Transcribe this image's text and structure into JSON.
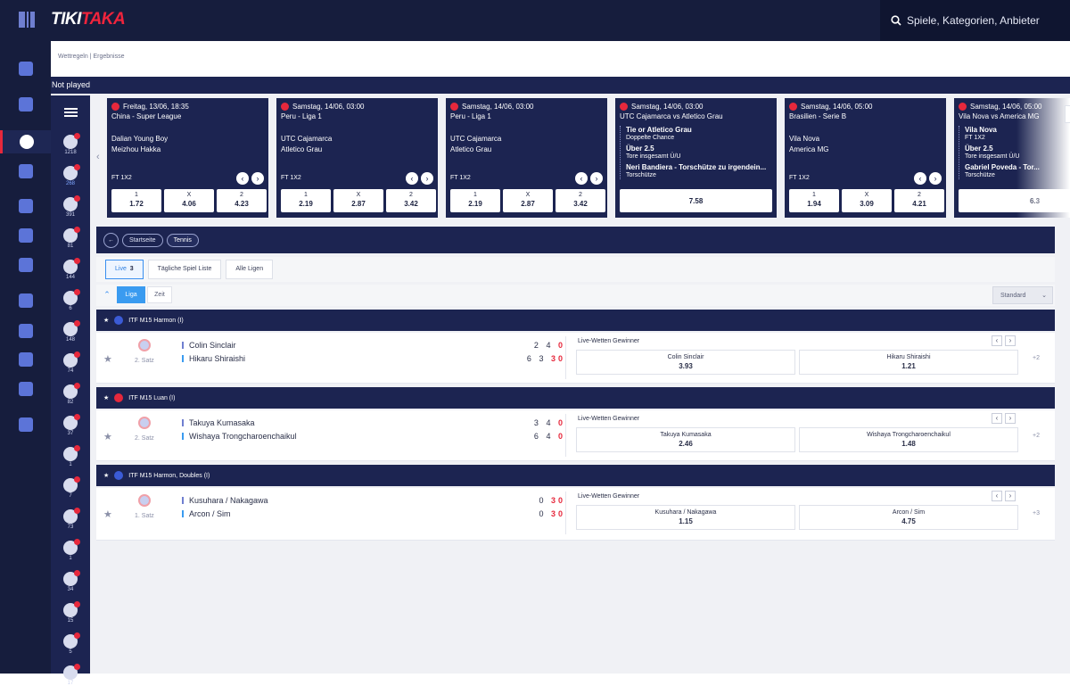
{
  "app": {
    "logo_left": "TIKI",
    "logo_right": "TAKA"
  },
  "search": {
    "placeholder": "Spiele, Kategorien, Anbieter"
  },
  "breadcrumb": {
    "item1": "Wettregeln",
    "sep": "|",
    "item2": "Ergebnisse"
  },
  "banner": {
    "label": "Not played"
  },
  "left_nav": [
    "gift-icon",
    "home-icon",
    "tennis-icon",
    "live-icon",
    "betslip-icon",
    "casino-icon",
    "seven-icon",
    "calendar-icon",
    "trophy-icon",
    "speed-icon",
    "basket-icon",
    "crown-icon"
  ],
  "sport_bar": [
    {
      "icon": "soccer-icon",
      "count": "1218"
    },
    {
      "icon": "tennis-icon",
      "count": "268"
    },
    {
      "icon": "table-tennis-icon",
      "count": "391"
    },
    {
      "icon": "basketball-icon",
      "count": "81"
    },
    {
      "icon": "hockey-icon",
      "count": "144"
    },
    {
      "icon": "rugby-icon",
      "count": "6"
    },
    {
      "icon": "volleyball-icon",
      "count": "148"
    },
    {
      "icon": "baseball-icon",
      "count": "74"
    },
    {
      "icon": "esports-icon",
      "count": "82"
    },
    {
      "icon": "cricket-icon",
      "count": "37"
    },
    {
      "icon": "darts-icon",
      "count": "1"
    },
    {
      "icon": "racing-icon",
      "count": "7"
    },
    {
      "icon": "chess-icon",
      "count": "73"
    },
    {
      "icon": "cycling-icon",
      "count": "1"
    },
    {
      "icon": "boxing-icon",
      "count": "34"
    },
    {
      "icon": "target-icon",
      "count": "15"
    },
    {
      "icon": "athletics-icon",
      "count": "5"
    },
    {
      "icon": "ski-icon",
      "count": "17"
    }
  ],
  "cards": [
    {
      "date": "Freitag, 13/06, 18:35",
      "league": "China - Super League",
      "home": "Dalian Young Boy",
      "away": "Meizhou Hakka",
      "market": "FT 1X2",
      "odds": [
        {
          "l": "1",
          "v": "1.72"
        },
        {
          "l": "X",
          "v": "4.06"
        },
        {
          "l": "2",
          "v": "4.23"
        }
      ]
    },
    {
      "date": "Samstag, 14/06, 03:00",
      "league": "Peru - Liga 1",
      "home": "UTC Cajamarca",
      "away": "Atletico Grau",
      "market": "FT 1X2",
      "odds": [
        {
          "l": "1",
          "v": "2.19"
        },
        {
          "l": "X",
          "v": "2.87"
        },
        {
          "l": "2",
          "v": "3.42"
        }
      ]
    },
    {
      "date": "Samstag, 14/06, 03:00",
      "league": "Peru - Liga 1",
      "home": "UTC Cajamarca",
      "away": "Atletico Grau",
      "market": "FT 1X2",
      "odds": [
        {
          "l": "1",
          "v": "2.19"
        },
        {
          "l": "X",
          "v": "2.87"
        },
        {
          "l": "2",
          "v": "3.42"
        }
      ]
    },
    {
      "date": "Samstag, 14/06, 03:00",
      "league": "UTC Cajamarca vs Atletico Grau",
      "bets": [
        {
          "b": "Tie or Atletico Grau",
          "s": "Doppelte Chance"
        },
        {
          "b": "Über 2.5",
          "s": "Tore insgesamt Ü/U"
        },
        {
          "b": "Neri Bandiera - Torschütze zu irgendein...",
          "s": "Torschütze"
        }
      ],
      "single": "7.58"
    },
    {
      "date": "Samstag, 14/06, 05:00",
      "league": "Brasilien - Serie B",
      "home": "Vila Nova",
      "away": "America MG",
      "market": "FT 1X2",
      "odds": [
        {
          "l": "1",
          "v": "1.94"
        },
        {
          "l": "X",
          "v": "3.09"
        },
        {
          "l": "2",
          "v": "4.21"
        }
      ]
    },
    {
      "date": "Samstag, 14/06, 05:00",
      "league": "Vila Nova vs America MG",
      "bets": [
        {
          "b": "Vila Nova",
          "s": "FT 1X2"
        },
        {
          "b": "Über 2.5",
          "s": "Tore insgesamt Ü/U"
        },
        {
          "b": "Gabriel Poveda - Tor...",
          "s": "Torschütze"
        }
      ],
      "single": "6.3"
    }
  ],
  "tabs": {
    "home": "Startseite",
    "sport": "Tennis"
  },
  "subtabs": {
    "live": "Live",
    "live_count": "3",
    "daily": "Tägliche Spiel Liste",
    "all": "Alle Ligen"
  },
  "view": {
    "liga": "Liga",
    "zeit": "Zeit",
    "sort": "Standard"
  },
  "leagues": [
    {
      "name": "ITF M15 Harmon (I)",
      "flag": "#3b5bd6",
      "match": {
        "set": "2. Satz",
        "p1": "Colin Sinclair",
        "p2": "Hikaru Shiraishi",
        "s1a": "2",
        "s1b": "4",
        "s1c": "0",
        "s2a": "6",
        "s2b": "3",
        "s2c": "30",
        "market": "Live-Wetten Gewinner",
        "o1_name": "Colin Sinclair",
        "o1_val": "3.93",
        "o2_name": "Hikaru Shiraishi",
        "o2_val": "1.21",
        "more": "+2"
      }
    },
    {
      "name": "ITF M15 Luan (I)",
      "flag": "#e6283c",
      "match": {
        "set": "2. Satz",
        "p1": "Takuya Kumasaka",
        "p2": "Wishaya Trongcharoenchaikul",
        "s1a": "3",
        "s1b": "4",
        "s1c": "0",
        "s2a": "6",
        "s2b": "4",
        "s2c": "0",
        "market": "Live-Wetten Gewinner",
        "o1_name": "Takuya Kumasaka",
        "o1_val": "2.46",
        "o2_name": "Wishaya Trongcharoenchaikul",
        "o2_val": "1.48",
        "more": "+2"
      }
    },
    {
      "name": "ITF M15 Harmon, Doubles (I)",
      "flag": "#3b5bd6",
      "match": {
        "set": "1. Satz",
        "p1": "Kusuhara / Nakagawa",
        "p2": "Arcon / Sim",
        "s1a": "",
        "s1b": "0",
        "s1c": "30",
        "s2a": "",
        "s2b": "0",
        "s2c": "30",
        "market": "Live-Wetten Gewinner",
        "o1_name": "Kusuhara / Nakagawa",
        "o1_val": "1.15",
        "o2_name": "Arcon / Sim",
        "o2_val": "4.75",
        "more": "+3"
      }
    }
  ],
  "colors": {
    "navy": "#1c2451",
    "dark": "#161d3d",
    "red": "#e6283c",
    "blue": "#3a9bf0"
  }
}
